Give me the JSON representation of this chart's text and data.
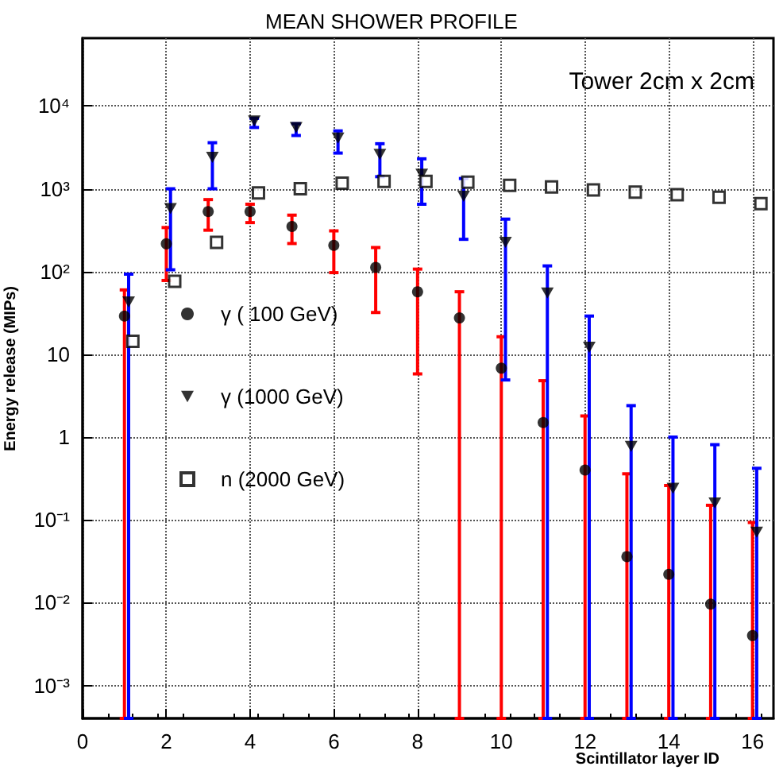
{
  "chart_data": {
    "type": "scatter",
    "title": "MEAN SHOWER PROFILE",
    "xlabel": "Scintillator layer ID",
    "ylabel": "Energy release (MIPs)",
    "annotations": [
      "Tower 2cm x 2cm"
    ],
    "log": "y",
    "grid": true,
    "legend": "left",
    "xlim": [
      0,
      16.5
    ],
    "xticks": [
      0,
      2,
      4,
      6,
      8,
      10,
      12,
      14,
      16
    ],
    "ylim": [
      0.0004,
      66000
    ],
    "yticks": [
      {
        "value": 0.001,
        "label": "10⁻³"
      },
      {
        "value": 0.01,
        "label": "10⁻²"
      },
      {
        "value": 0.1,
        "label": "10⁻¹"
      },
      1,
      10,
      {
        "value": 100,
        "label": "10²"
      },
      {
        "value": 1000,
        "label": "10³"
      },
      {
        "value": 10000,
        "label": "10⁴"
      }
    ],
    "series": [
      {
        "name": "γ ( 100 GeV)",
        "marker": "circle",
        "color": "#000000",
        "x": [
          1,
          2,
          3,
          4,
          5,
          6,
          7,
          8,
          9,
          10,
          11,
          12,
          13,
          14,
          15,
          16
        ],
        "values": [
          29,
          216,
          530,
          530,
          350,
          207,
          112,
          57,
          27.5,
          6.8,
          1.5,
          0.4,
          0.036,
          0.022,
          0.0096,
          0.004
        ],
        "errors": [
          [
            0.0004,
            60
          ],
          [
            78,
            340
          ],
          [
            316,
            740
          ],
          [
            390,
            650
          ],
          [
            218,
            480
          ],
          [
            97,
            310
          ],
          [
            32,
            195
          ],
          [
            5.8,
            107
          ],
          [
            0.0004,
            57
          ],
          [
            0.0004,
            16.3
          ],
          [
            0.0004,
            4.8
          ],
          [
            0.0004,
            1.8
          ],
          [
            0.0004,
            0.36
          ],
          [
            0.0004,
            0.26
          ],
          [
            0.0004,
            0.15
          ],
          [
            0.0004,
            0.093
          ]
        ]
      },
      {
        "name": "γ (1000 GeV)",
        "marker": "triangle",
        "color": "#000000",
        "x": [
          1.1,
          2.1,
          3.1,
          4.1,
          5.1,
          6.1,
          7.1,
          8.1,
          9.1,
          10.1,
          11.1,
          12.1,
          13.1,
          14.1,
          15.1,
          16.1
        ],
        "values": [
          43,
          575,
          2400,
          6600,
          5500,
          4100,
          2600,
          1500,
          810,
          225,
          55,
          12.2,
          0.77,
          0.24,
          0.16,
          0.071
        ],
        "errors": [
          [
            0.0004,
            93
          ],
          [
            105,
            1000
          ],
          [
            1000,
            3600
          ],
          [
            5500,
            7100
          ],
          [
            4400,
            6100
          ],
          [
            2700,
            5000
          ],
          [
            1400,
            3500
          ],
          [
            650,
            2300
          ],
          [
            245,
            1330
          ],
          [
            4.9,
            430
          ],
          [
            0.0004,
            117
          ],
          [
            0.0004,
            29
          ],
          [
            0.0004,
            2.4
          ],
          [
            0.0004,
            1.0
          ],
          [
            0.0004,
            0.81
          ],
          [
            0.0004,
            0.42
          ]
        ]
      },
      {
        "name": "n (2000 GeV)",
        "marker": "square",
        "color": "#000000",
        "x": [
          1.2,
          2.2,
          3.2,
          4.2,
          5.2,
          6.2,
          7.2,
          8.2,
          9.2,
          10.2,
          11.2,
          12.2,
          13.2,
          14.2,
          15.2,
          16.2
        ],
        "values": [
          14.4,
          76,
          225,
          890,
          1000,
          1170,
          1230,
          1230,
          1200,
          1100,
          1050,
          970,
          910,
          850,
          790,
          660
        ]
      }
    ]
  }
}
